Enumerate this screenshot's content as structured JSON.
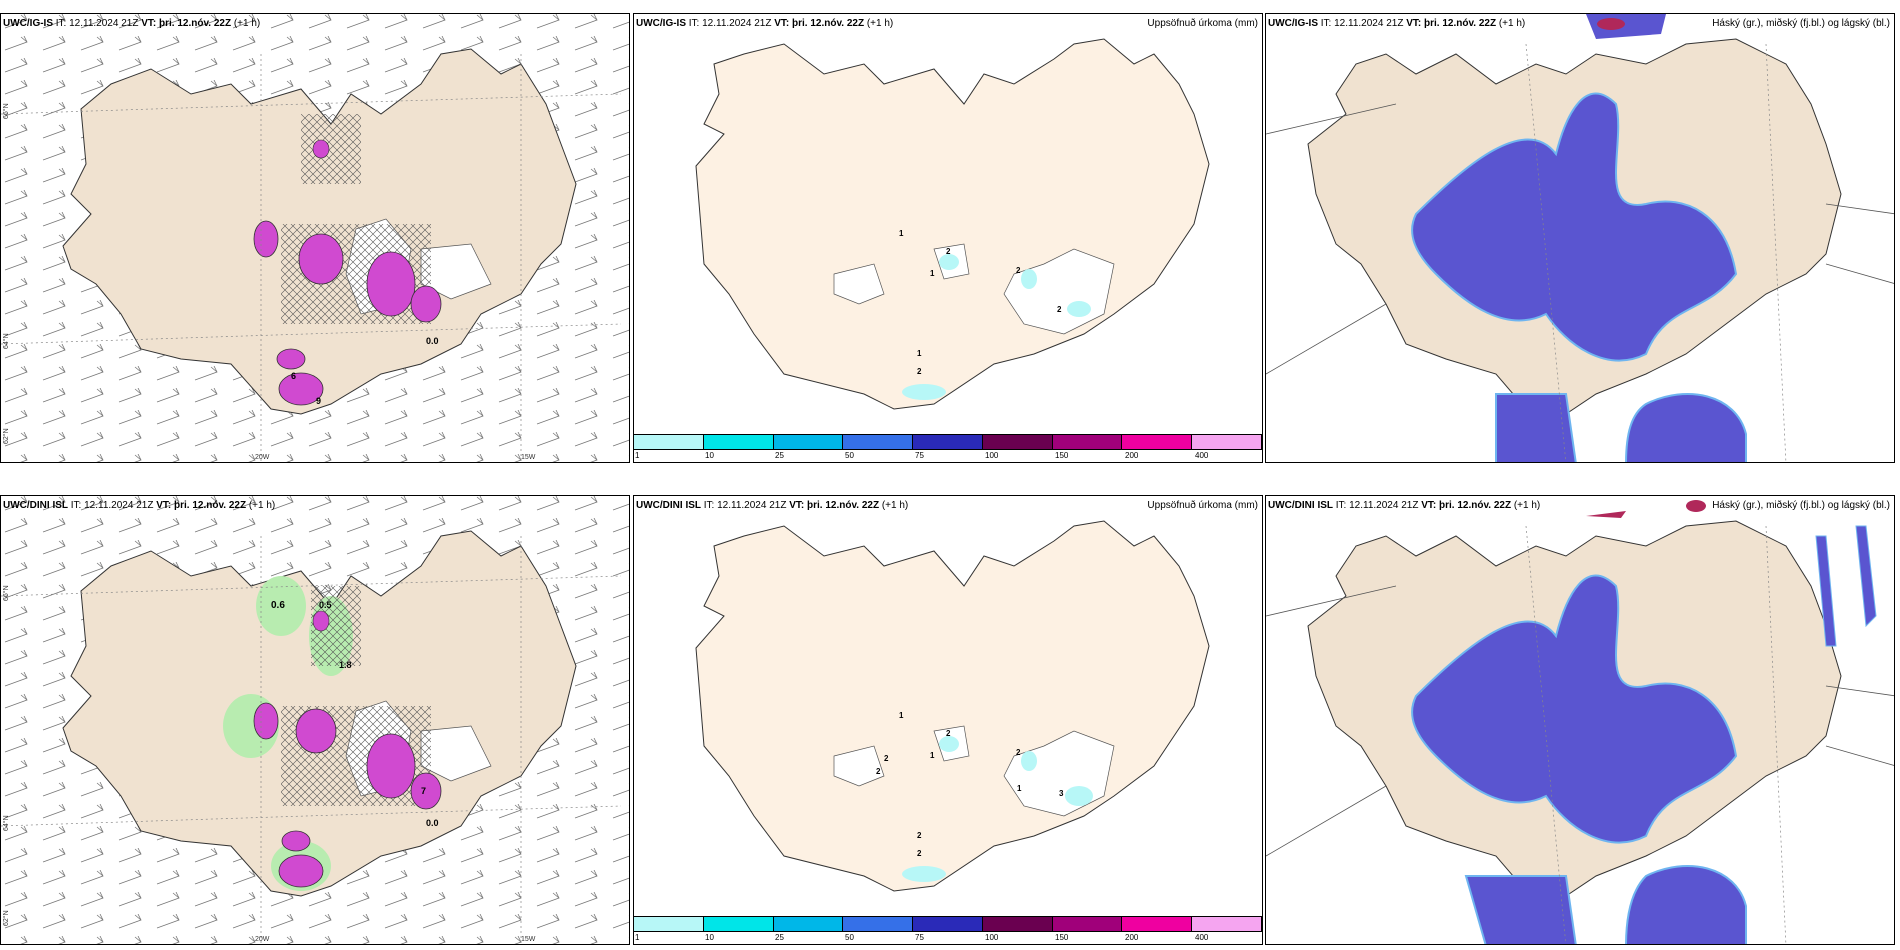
{
  "rows": [
    {
      "model": "UWC/IG-IS",
      "it": "IT: 12.11.2024 21Z",
      "vt_label": "VT:",
      "vt_value": "þri. 12.nóv. 22Z",
      "lead": "(+1 h)",
      "wind_labels": [
        "6",
        "9",
        "0.0"
      ],
      "precip_labels": [
        "1",
        "2",
        "1",
        "2",
        "2",
        "1",
        "2"
      ]
    },
    {
      "model": "UWC/DINI ISL",
      "it": "IT: 12.11.2024 21Z",
      "vt_label": "VT:",
      "vt_value": "þri. 12.nóv. 22Z",
      "lead": "(+1 h)",
      "wind_labels": [
        "0.6",
        "0.5",
        "1.8",
        "7",
        "0.0"
      ],
      "precip_labels": [
        "1",
        "2",
        "1",
        "2",
        "2",
        "2",
        "1",
        "3",
        "2",
        "2"
      ]
    }
  ],
  "precip_title": "Uppsöfnuð úrkoma (mm)",
  "cloud_title": "Háský (gr.), miðský (fj.bl.) og lágský (bl.)",
  "legend": {
    "ticks": [
      "1",
      "10",
      "25",
      "50",
      "75",
      "100",
      "150",
      "200",
      "400"
    ],
    "colors": [
      "#b7f7f7",
      "#00e5e8",
      "#00b7e8",
      "#3570e8",
      "#2a2ab8",
      "#6a0050",
      "#a0007a",
      "#ef00a0",
      "#f5a5f0"
    ]
  },
  "axes": {
    "lon_20": "20W",
    "lon_15": "15W",
    "lat_66": "66°N",
    "lat_64": "64°N",
    "lat_62": "62°N"
  },
  "colors": {
    "land_tan": "#f0e2d0",
    "land_cream": "#fdf1e3",
    "cloud_blue": "#5a55d0",
    "cloud_light": "#6fb5f0",
    "magenta": "#d04ad0",
    "green": "#b8ecb0"
  }
}
